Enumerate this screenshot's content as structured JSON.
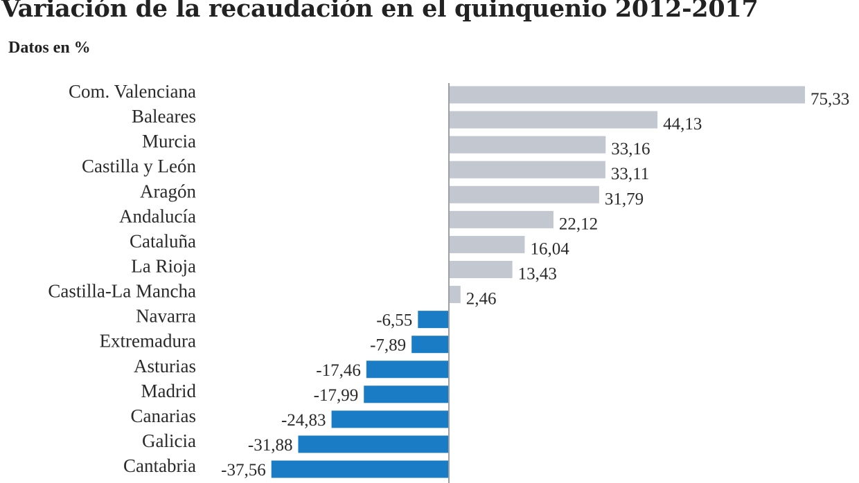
{
  "chart_data": {
    "type": "bar",
    "orientation": "horizontal",
    "title": "Variación de la recaudación en el quinquenio 2012-2017",
    "subtitle": "Datos en %",
    "categories": [
      "Com. Valenciana",
      "Baleares",
      "Murcia",
      "Castilla y León",
      "Aragón",
      "Andalucía",
      "Cataluña",
      "La Rioja",
      "Castilla-La Mancha",
      "Navarra",
      "Extremadura",
      "Asturias",
      "Madrid",
      "Canarias",
      "Galicia",
      "Cantabria"
    ],
    "values": [
      75.33,
      44.13,
      33.16,
      33.11,
      31.79,
      22.12,
      16.04,
      13.43,
      2.46,
      -6.55,
      -7.89,
      -17.46,
      -17.99,
      -24.83,
      -31.88,
      -37.56
    ],
    "labels": [
      "75,33",
      "44,13",
      "33,16",
      "33,11",
      "31,79",
      "22,12",
      "16,04",
      "13,43",
      "2,46",
      "-6,55",
      "-7,89",
      "-17,46",
      "-17,99",
      "-24,83",
      "-31,88",
      "-37,56"
    ],
    "colors": {
      "positive": "#c3c7d0",
      "negative": "#1a7cc4",
      "axis": "#9a9ea6"
    },
    "xlim": [
      -37.56,
      75.33
    ],
    "grid": false,
    "legend": "none"
  }
}
